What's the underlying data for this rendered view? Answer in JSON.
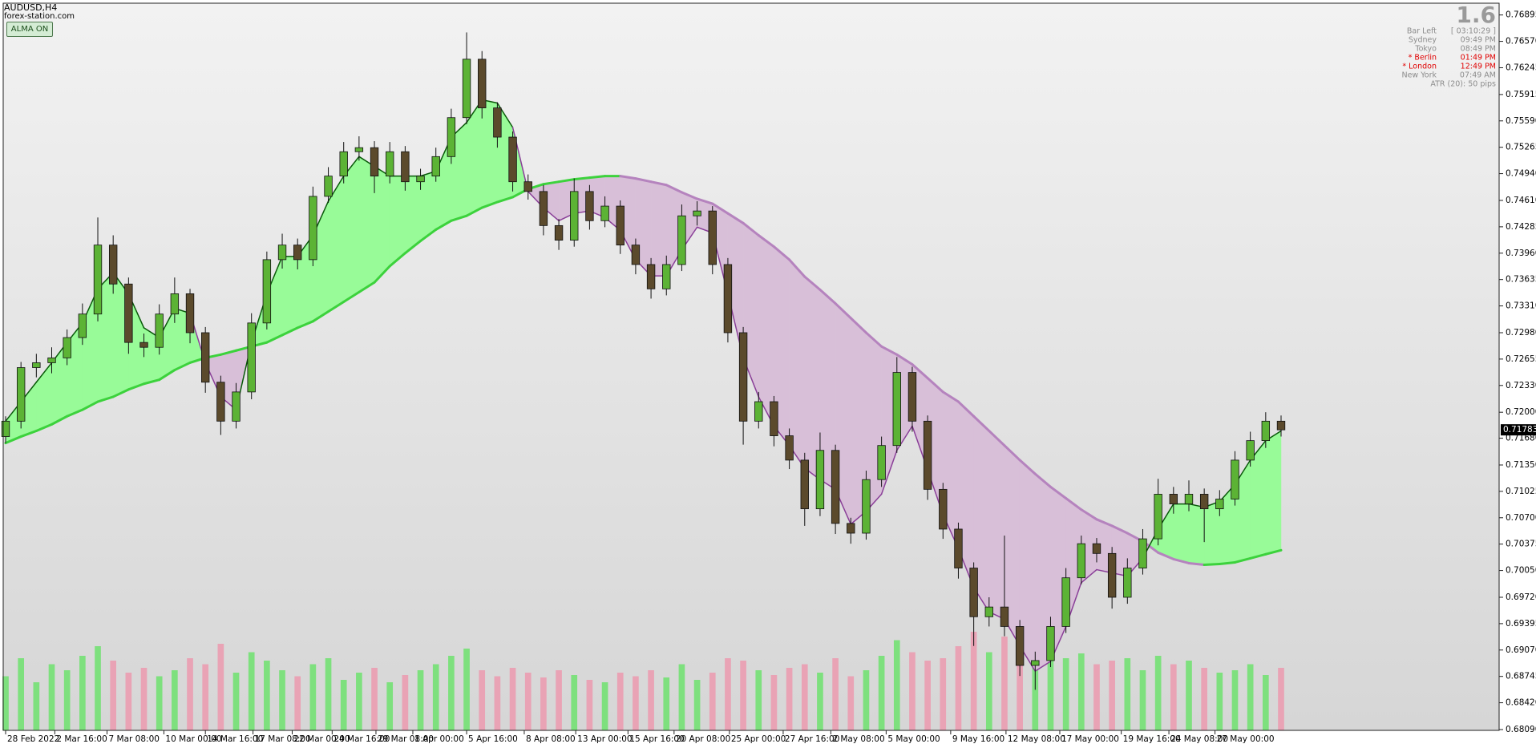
{
  "header": {
    "symbol": "AUDUSD,H4",
    "source": "forex-station.com",
    "button": "ALMA ON"
  },
  "info_panel": {
    "version": "1.6",
    "rows": [
      {
        "label": "Bar Left",
        "value": "[ 03:10:29 ]",
        "color": "#8c8c8c"
      },
      {
        "label": "Sydney",
        "value": "09:49 PM",
        "color": "#8c8c8c"
      },
      {
        "label": "Tokyo",
        "value": "08:49 PM",
        "color": "#8c8c8c"
      },
      {
        "label": "* Berlin",
        "value": "01:49 PM",
        "color": "#e00000"
      },
      {
        "label": "* London",
        "value": "12:49 PM",
        "color": "#e00000"
      },
      {
        "label": "New York",
        "value": "07:49 AM",
        "color": "#8c8c8c"
      }
    ],
    "atr": "ATR (20): 50 pips"
  },
  "chart_data": {
    "type": "candlestick",
    "ylim": [
      0.6808,
      0.7704
    ],
    "yticks": [
      0.76895,
      {
        "value": 0.7657,
        "label": "0.76570"
      },
      0.76245,
      0.75915,
      {
        "value": 0.7559,
        "label": "0.75590"
      },
      0.75265,
      {
        "value": 0.7494,
        "label": "0.74940"
      },
      {
        "value": 0.7461,
        "label": "0.74610"
      },
      0.74285,
      {
        "value": 0.7396,
        "label": "0.73960"
      },
      0.73635,
      {
        "value": 0.7331,
        "label": "0.73310"
      },
      {
        "value": 0.7298,
        "label": "0.72980"
      },
      0.72655,
      {
        "value": 0.7233,
        "label": "0.72330"
      },
      {
        "value": 0.72,
        "label": "0.72000"
      },
      {
        "value": 0.7168,
        "label": "0.71680"
      },
      {
        "value": 0.7135,
        "label": "0.71350"
      },
      0.71025,
      {
        "value": 0.707,
        "label": "0.70700"
      },
      0.70375,
      {
        "value": 0.7005,
        "label": "0.70050"
      },
      {
        "value": 0.6972,
        "label": "0.69720"
      },
      0.69395,
      {
        "value": 0.6907,
        "label": "0.69070"
      },
      0.68745,
      {
        "value": 0.6842,
        "label": "0.68420"
      },
      {
        "value": 0.6809,
        "label": "0.68090"
      }
    ],
    "xticks": [
      {
        "value": 0,
        "label": "28 Feb 2022"
      },
      {
        "value": 3.2,
        "label": "2 Mar 16:00"
      },
      {
        "value": 6.6,
        "label": "7 Mar 08:00"
      },
      {
        "value": 10.3,
        "label": "10 Mar 00:00"
      },
      {
        "value": 13,
        "label": "14 Mar 16:00"
      },
      {
        "value": 16.1,
        "label": "17 Mar 08:00"
      },
      {
        "value": 18.65,
        "label": "22 Mar 00:00"
      },
      {
        "value": 21.25,
        "label": "24 Mar 16:00"
      },
      {
        "value": 24.1,
        "label": "29 Mar 08:00"
      },
      {
        "value": 26.5,
        "label": "1 Apr 00:00"
      },
      {
        "value": 30,
        "label": "5 Apr 16:00"
      },
      {
        "value": 33.75,
        "label": "8 Apr 08:00"
      },
      {
        "value": 37.1,
        "label": "13 Apr 00:00"
      },
      {
        "value": 40.5,
        "label": "15 Apr 16:00"
      },
      {
        "value": 43.5,
        "label": "20 Apr 08:00"
      },
      {
        "value": 47.1,
        "label": "25 Apr 00:00"
      },
      {
        "value": 50.6,
        "label": "27 Apr 16:00"
      },
      {
        "value": 53.7,
        "label": "2 May 08:00"
      },
      {
        "value": 57.3,
        "label": "5 May 00:00"
      },
      {
        "value": 61.5,
        "label": "9 May 16:00"
      },
      {
        "value": 65.1,
        "label": "12 May 08:00"
      },
      {
        "value": 68.6,
        "label": "17 May 00:00"
      },
      {
        "value": 72.6,
        "label": "19 May 16:00"
      },
      {
        "value": 75.7,
        "label": "24 May 08:00"
      },
      {
        "value": 78.7,
        "label": "27 May 00:00"
      }
    ],
    "ohlc": [
      [
        0.717,
        0.7195,
        0.7162,
        0.7189
      ],
      [
        0.7189,
        0.7262,
        0.718,
        0.7255
      ],
      [
        0.7255,
        0.7272,
        0.7243,
        0.7261
      ],
      [
        0.7261,
        0.728,
        0.7248,
        0.7267
      ],
      [
        0.7267,
        0.7302,
        0.7258,
        0.7292
      ],
      [
        0.7292,
        0.7334,
        0.7283,
        0.7321
      ],
      [
        0.7321,
        0.744,
        0.7312,
        0.7406
      ],
      [
        0.7406,
        0.7418,
        0.7346,
        0.7358
      ],
      [
        0.7358,
        0.7366,
        0.7272,
        0.7286
      ],
      [
        0.7286,
        0.7297,
        0.7268,
        0.728
      ],
      [
        0.728,
        0.7333,
        0.7271,
        0.7321
      ],
      [
        0.7321,
        0.7366,
        0.731,
        0.7346
      ],
      [
        0.7346,
        0.7352,
        0.7285,
        0.7298
      ],
      [
        0.7298,
        0.7305,
        0.7224,
        0.7237
      ],
      [
        0.7237,
        0.7245,
        0.7172,
        0.7189
      ],
      [
        0.7189,
        0.7236,
        0.718,
        0.7225
      ],
      [
        0.7225,
        0.7322,
        0.7216,
        0.731
      ],
      [
        0.731,
        0.7398,
        0.7302,
        0.7388
      ],
      [
        0.7388,
        0.742,
        0.7377,
        0.7406
      ],
      [
        0.7406,
        0.7414,
        0.7376,
        0.7388
      ],
      [
        0.7388,
        0.7478,
        0.738,
        0.7466
      ],
      [
        0.7466,
        0.7502,
        0.7458,
        0.7491
      ],
      [
        0.7491,
        0.7533,
        0.7482,
        0.7521
      ],
      [
        0.7521,
        0.754,
        0.751,
        0.7526
      ],
      [
        0.7526,
        0.7534,
        0.747,
        0.7491
      ],
      [
        0.7491,
        0.7533,
        0.7482,
        0.7521
      ],
      [
        0.7521,
        0.7528,
        0.7473,
        0.7484
      ],
      [
        0.7484,
        0.75,
        0.7474,
        0.7491
      ],
      [
        0.7491,
        0.7526,
        0.7484,
        0.7515
      ],
      [
        0.7515,
        0.7574,
        0.7506,
        0.7563
      ],
      [
        0.7563,
        0.7668,
        0.7555,
        0.7635
      ],
      [
        0.7635,
        0.7645,
        0.7562,
        0.7575
      ],
      [
        0.7575,
        0.7582,
        0.7526,
        0.7539
      ],
      [
        0.7539,
        0.7546,
        0.7472,
        0.7484
      ],
      [
        0.7484,
        0.7493,
        0.7462,
        0.7472
      ],
      [
        0.7472,
        0.748,
        0.7418,
        0.743
      ],
      [
        0.743,
        0.7438,
        0.74,
        0.7412
      ],
      [
        0.7412,
        0.7488,
        0.7404,
        0.7472
      ],
      [
        0.7472,
        0.748,
        0.7425,
        0.7436
      ],
      [
        0.7436,
        0.7466,
        0.7428,
        0.7454
      ],
      [
        0.7454,
        0.7461,
        0.7395,
        0.7406
      ],
      [
        0.7406,
        0.7414,
        0.737,
        0.7382
      ],
      [
        0.7382,
        0.739,
        0.734,
        0.7352
      ],
      [
        0.7352,
        0.7393,
        0.7344,
        0.7382
      ],
      [
        0.7382,
        0.7456,
        0.7374,
        0.7442
      ],
      [
        0.7442,
        0.746,
        0.743,
        0.7448
      ],
      [
        0.7448,
        0.7454,
        0.737,
        0.7382
      ],
      [
        0.7382,
        0.739,
        0.7286,
        0.7298
      ],
      [
        0.7298,
        0.7305,
        0.716,
        0.7189
      ],
      [
        0.7189,
        0.7225,
        0.718,
        0.7213
      ],
      [
        0.7213,
        0.722,
        0.7158,
        0.7171
      ],
      [
        0.7171,
        0.718,
        0.713,
        0.7141
      ],
      [
        0.7141,
        0.715,
        0.706,
        0.7081
      ],
      [
        0.7081,
        0.7175,
        0.7072,
        0.7153
      ],
      [
        0.7153,
        0.716,
        0.705,
        0.7063
      ],
      [
        0.7063,
        0.707,
        0.7038,
        0.7051
      ],
      [
        0.7051,
        0.7128,
        0.7043,
        0.7117
      ],
      [
        0.7117,
        0.717,
        0.7108,
        0.7159
      ],
      [
        0.7159,
        0.7268,
        0.715,
        0.7249
      ],
      [
        0.7249,
        0.7256,
        0.7176,
        0.7189
      ],
      [
        0.7189,
        0.7196,
        0.7092,
        0.7105
      ],
      [
        0.7105,
        0.7113,
        0.7044,
        0.7056
      ],
      [
        0.7056,
        0.7064,
        0.6995,
        0.7008
      ],
      [
        0.7008,
        0.7015,
        0.6912,
        0.6948
      ],
      [
        0.6948,
        0.6972,
        0.6936,
        0.696
      ],
      [
        0.696,
        0.7048,
        0.6924,
        0.6936
      ],
      [
        0.6936,
        0.6944,
        0.6875,
        0.6888
      ],
      [
        0.6888,
        0.6905,
        0.6858,
        0.6894
      ],
      [
        0.6894,
        0.6948,
        0.6886,
        0.6936
      ],
      [
        0.6936,
        0.7008,
        0.6928,
        0.6996
      ],
      [
        0.6996,
        0.7048,
        0.6988,
        0.7038
      ],
      [
        0.7038,
        0.7045,
        0.7015,
        0.7026
      ],
      [
        0.7026,
        0.7034,
        0.6958,
        0.6972
      ],
      [
        0.6972,
        0.702,
        0.6964,
        0.7008
      ],
      [
        0.7008,
        0.7056,
        0.7,
        0.7044
      ],
      [
        0.7044,
        0.7118,
        0.7036,
        0.7099
      ],
      [
        0.7099,
        0.7108,
        0.7075,
        0.7087
      ],
      [
        0.7087,
        0.7116,
        0.7078,
        0.7099
      ],
      [
        0.7099,
        0.7106,
        0.704,
        0.7081
      ],
      [
        0.7081,
        0.7104,
        0.7072,
        0.7093
      ],
      [
        0.7093,
        0.7152,
        0.7085,
        0.7141
      ],
      [
        0.7141,
        0.7176,
        0.7133,
        0.7165
      ],
      [
        0.7165,
        0.72,
        0.7156,
        0.7189
      ],
      [
        0.7189,
        0.7196,
        0.717,
        0.71783
      ]
    ],
    "alma_fast": [
      0.7189,
      0.7213,
      0.7237,
      0.7261,
      0.7286,
      0.731,
      0.7352,
      0.7372,
      0.7346,
      0.7304,
      0.7292,
      0.7328,
      0.7322,
      0.7261,
      0.7219,
      0.7203,
      0.7286,
      0.7346,
      0.7392,
      0.7392,
      0.7418,
      0.746,
      0.7491,
      0.7515,
      0.7503,
      0.7491,
      0.7491,
      0.7491,
      0.7497,
      0.7539,
      0.7557,
      0.7585,
      0.7581,
      0.7551,
      0.7472,
      0.7452,
      0.7436,
      0.7445,
      0.7448,
      0.744,
      0.7424,
      0.7388,
      0.7368,
      0.7368,
      0.74,
      0.7428,
      0.7421,
      0.7346,
      0.7267,
      0.7219,
      0.7183,
      0.7159,
      0.7131,
      0.7117,
      0.7105,
      0.7062,
      0.7078,
      0.7099,
      0.7153,
      0.7183,
      0.7129,
      0.7074,
      0.7032,
      0.6984,
      0.6954,
      0.6945,
      0.6912,
      0.6881,
      0.6893,
      0.6936,
      0.699,
      0.7006,
      0.7002,
      0.6998,
      0.702,
      0.7056,
      0.7087,
      0.7087,
      0.7083,
      0.709,
      0.7111,
      0.7141,
      0.7165,
      0.7177
    ],
    "alma_slow": [
      0.7162,
      0.717,
      0.7177,
      0.7185,
      0.7195,
      0.7203,
      0.7213,
      0.7219,
      0.7228,
      0.7235,
      0.724,
      0.7252,
      0.7261,
      0.7267,
      0.7271,
      0.7276,
      0.7281,
      0.7286,
      0.7295,
      0.7304,
      0.7312,
      0.7324,
      0.7336,
      0.7348,
      0.736,
      0.738,
      0.7396,
      0.7411,
      0.7425,
      0.7436,
      0.7442,
      0.7452,
      0.7459,
      0.7465,
      0.7475,
      0.7481,
      0.7484,
      0.7487,
      0.7489,
      0.7491,
      0.7491,
      0.7488,
      0.7484,
      0.748,
      0.7471,
      0.7463,
      0.7457,
      0.7445,
      0.7433,
      0.7418,
      0.7404,
      0.7388,
      0.7367,
      0.7351,
      0.7334,
      0.7316,
      0.7298,
      0.7281,
      0.7271,
      0.7259,
      0.7242,
      0.7225,
      0.7213,
      0.7195,
      0.7177,
      0.7159,
      0.7141,
      0.7124,
      0.7108,
      0.7094,
      0.708,
      0.7068,
      0.706,
      0.7051,
      0.7041,
      0.7027,
      0.7019,
      0.7014,
      0.7012,
      0.7013,
      0.7015,
      0.702,
      0.7025,
      0.703
    ],
    "volumes": [
      45,
      60,
      40,
      55,
      50,
      62,
      70,
      58,
      48,
      52,
      45,
      50,
      60,
      55,
      72,
      48,
      65,
      58,
      50,
      45,
      55,
      60,
      42,
      48,
      52,
      40,
      46,
      50,
      55,
      62,
      68,
      50,
      45,
      52,
      48,
      44,
      50,
      46,
      42,
      40,
      48,
      45,
      50,
      44,
      55,
      42,
      48,
      60,
      58,
      50,
      46,
      52,
      55,
      48,
      60,
      45,
      50,
      62,
      75,
      65,
      58,
      60,
      70,
      82,
      65,
      78,
      70,
      66,
      72,
      60,
      64,
      55,
      58,
      60,
      50,
      62,
      55,
      58,
      52,
      48,
      50,
      55,
      46,
      52
    ],
    "volume_ylim": [
      0,
      100
    ],
    "colors": {
      "up_body": "#5cb335",
      "down_body": "#5b4a2c",
      "outline": "#111111",
      "fill_up": "#98fb98",
      "fill_down": "#d8bfd8",
      "fast_up": "#0a5a0a",
      "fast_down": "#8a3f98",
      "slow_up": "#3cd23c",
      "slow_down": "#b583be",
      "vol_up": "#7ee07e",
      "vol_down": "#e9a3b5"
    }
  }
}
